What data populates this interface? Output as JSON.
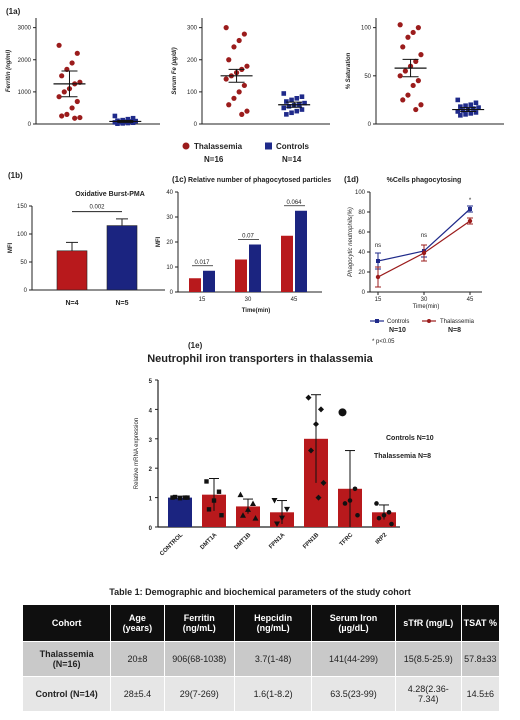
{
  "panel_labels": {
    "a": "(1a)",
    "b": "(1b)",
    "c": "(1c)",
    "d": "(1d)",
    "e": "(1e)"
  },
  "legend_top": {
    "items": [
      {
        "name": "Thalassemia",
        "n": "N=16",
        "color": "#9b1c1c",
        "marker": "circle"
      },
      {
        "name": "Controls",
        "n": "N=14",
        "color": "#1f2a8a",
        "marker": "square"
      }
    ]
  },
  "colors": {
    "thal": "#9b1c1c",
    "ctrl": "#1f2a8a",
    "thal_bar": "#b8191c",
    "ctrl_bar": "#1b2480"
  },
  "chart_data": [
    {
      "id": "ferritin",
      "type": "scatter",
      "ylabel": "Ferritin (ng/ml)",
      "yticks": [
        0,
        1000,
        2000,
        3000
      ],
      "ylim": [
        0,
        3300
      ],
      "groups": [
        {
          "name": "Thalassemia",
          "values": [
            2450,
            2200,
            1900,
            1700,
            1500,
            1300,
            1250,
            1100,
            1000,
            850,
            700,
            500,
            300,
            250,
            200,
            180
          ],
          "mean": 1250,
          "sem_low": 850,
          "sem_high": 1650
        },
        {
          "name": "Controls",
          "values": [
            250,
            180,
            150,
            120,
            100,
            90,
            80,
            70,
            60,
            50,
            40,
            30,
            20,
            10
          ],
          "mean": 80,
          "sem_low": 50,
          "sem_high": 110
        }
      ]
    },
    {
      "id": "serum_fe",
      "type": "scatter",
      "ylabel": "Serum Fe (µg/dl)",
      "yticks": [
        0,
        100,
        200,
        300
      ],
      "ylim": [
        0,
        330
      ],
      "groups": [
        {
          "name": "Thalassemia",
          "values": [
            300,
            280,
            260,
            240,
            200,
            180,
            170,
            160,
            150,
            140,
            120,
            100,
            80,
            60,
            40,
            30
          ],
          "mean": 150,
          "sem_low": 130,
          "sem_high": 170
        },
        {
          "name": "Controls",
          "values": [
            95,
            85,
            80,
            75,
            70,
            65,
            60,
            58,
            55,
            50,
            45,
            40,
            35,
            30
          ],
          "mean": 60,
          "sem_low": 52,
          "sem_high": 68
        }
      ]
    },
    {
      "id": "saturation",
      "type": "scatter",
      "ylabel": "% Saturation",
      "yticks": [
        0,
        50,
        100
      ],
      "ylim": [
        0,
        110
      ],
      "groups": [
        {
          "name": "Thalassemia",
          "values": [
            103,
            100,
            95,
            90,
            80,
            72,
            65,
            60,
            55,
            50,
            45,
            40,
            30,
            25,
            20,
            15
          ],
          "mean": 58,
          "sem_low": 49,
          "sem_high": 67
        },
        {
          "name": "Controls",
          "values": [
            25,
            22,
            20,
            19,
            18,
            17,
            16,
            15,
            14,
            13,
            12,
            11,
            10,
            9
          ],
          "mean": 15,
          "sem_low": 13,
          "sem_high": 17
        }
      ]
    },
    {
      "id": "oxidative",
      "type": "bar",
      "title": "Oxidative Burst-PMA",
      "ylabel": "MFI",
      "categories": [
        "N=4",
        "N=5"
      ],
      "values": [
        70,
        115
      ],
      "errors": [
        15,
        12
      ],
      "ylim": [
        0,
        150
      ],
      "yticks": [
        0,
        50,
        100,
        150
      ],
      "annotation": "0.002"
    },
    {
      "id": "phago_particles",
      "type": "bar",
      "title": "Relative number of phagocytosed particles",
      "xlabel": "Time(min)",
      "ylabel": "MFI",
      "categories": [
        "15",
        "30",
        "45"
      ],
      "series": [
        {
          "name": "Thalassemia",
          "values": [
            5.5,
            13,
            22.5
          ]
        },
        {
          "name": "Controls",
          "values": [
            8.5,
            19,
            32.5
          ]
        }
      ],
      "ylim": [
        0,
        40
      ],
      "yticks": [
        0,
        10,
        20,
        30,
        40
      ],
      "pvalues": [
        "0.017",
        "0.07",
        "0.064"
      ]
    },
    {
      "id": "pct_phago",
      "type": "line",
      "title": "%Cells phagocytosing",
      "xlabel": "Time(min)",
      "ylabel": "Phagocytic neutrophils(%)",
      "x": [
        "15",
        "30",
        "45"
      ],
      "series": [
        {
          "name": "Controls",
          "n": "N=10",
          "values": [
            31,
            41,
            83
          ],
          "errors": [
            8,
            6,
            3
          ]
        },
        {
          "name": "Thalassemia",
          "n": "N=8",
          "values": [
            15,
            39,
            71
          ],
          "errors": [
            10,
            8,
            3
          ]
        }
      ],
      "ylim": [
        0,
        100
      ],
      "yticks": [
        0,
        20,
        40,
        60,
        80,
        100
      ],
      "annotations": [
        "ns",
        "ns",
        "*"
      ],
      "footnote": "* p<0.05"
    },
    {
      "id": "iron_transporters",
      "type": "bar",
      "title": "Neutrophil iron transporters in thalassemia",
      "ylabel": "Relative mRNA expression",
      "categories": [
        "CONTROL",
        "DMT1A",
        "DMT1B",
        "FPN1A",
        "FPN1B",
        "TFRC",
        "IRP2"
      ],
      "values": [
        1.0,
        1.1,
        0.7,
        0.5,
        3.0,
        1.3,
        0.5
      ],
      "errors": [
        0.05,
        0.55,
        0.25,
        0.4,
        1.5,
        1.3,
        0.25
      ],
      "points": [
        [
          1.0,
          1.0,
          0.98,
          1.02,
          1.0
        ],
        [
          1.55,
          1.2,
          0.9,
          0.6,
          0.4
        ],
        [
          1.1,
          0.8,
          0.6,
          0.4,
          0.3
        ],
        [
          0.9,
          0.6,
          0.3,
          0.1
        ],
        [
          4.4,
          4.0,
          3.5,
          2.6,
          1.5,
          1.0
        ],
        [
          3.9,
          1.3,
          0.9,
          0.8,
          0.4
        ],
        [
          0.8,
          0.5,
          0.4,
          0.3,
          0.1
        ]
      ],
      "ylim": [
        0,
        5
      ],
      "yticks": [
        0,
        1,
        2,
        3,
        4,
        5
      ],
      "legend_text": [
        "Controls  N=10",
        "Thalassemia  N=8"
      ]
    }
  ],
  "table": {
    "caption": "Table 1: Demographic and biochemical parameters of the study cohort",
    "headers": [
      "Cohort",
      "Age (years)",
      "Ferritin (ng/mL)",
      "Hepcidin (ng/mL)",
      "Serum Iron (µg/dL)",
      "sTfR (mg/L)",
      "TSAT %"
    ],
    "rows": [
      [
        "Thalassemia (N=16)",
        "20±8",
        "906(68-1038)",
        "3.7(1-48)",
        "141(44-299)",
        "15(8.5-25.9)",
        "57.8±33"
      ],
      [
        "Control (N=14)",
        "28±5.4",
        "29(7-269)",
        "1.6(1-8.2)",
        "63.5(23-99)",
        "4.28(2.36-7.34)",
        "14.5±6"
      ]
    ]
  }
}
